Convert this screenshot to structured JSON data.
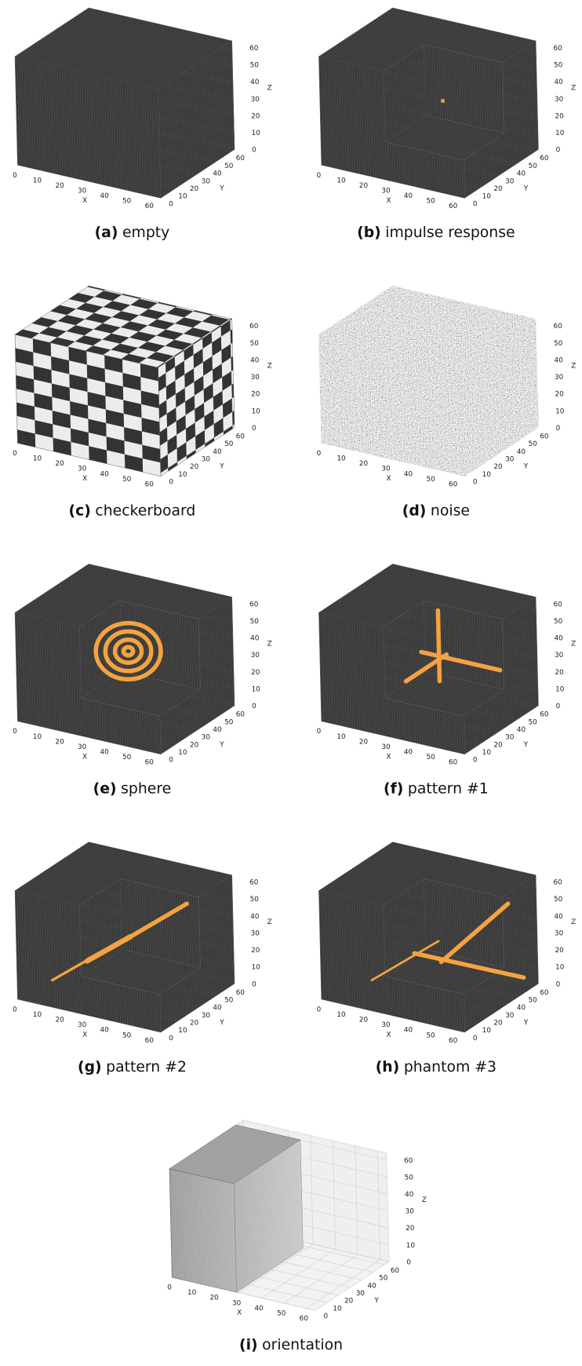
{
  "panels": [
    {
      "label": "(a)",
      "caption": "empty"
    },
    {
      "label": "(b)",
      "caption": "impulse response"
    },
    {
      "label": "(c)",
      "caption": "checkerboard"
    },
    {
      "label": "(d)",
      "caption": "noise"
    },
    {
      "label": "(e)",
      "caption": "sphere"
    },
    {
      "label": "(f)",
      "caption": "pattern #1"
    },
    {
      "label": "(g)",
      "caption": "pattern #2"
    },
    {
      "label": "(h)",
      "caption": "phantom #3"
    },
    {
      "label": "(i)",
      "caption": "orientation"
    }
  ],
  "axes": {
    "x": {
      "label": "X",
      "ticks": [
        0,
        10,
        20,
        30,
        40,
        50,
        60
      ]
    },
    "y": {
      "label": "Y",
      "ticks": [
        0,
        10,
        20,
        30,
        40,
        50,
        60
      ]
    },
    "z": {
      "label": "Z",
      "ticks": [
        0,
        10,
        20,
        30,
        40,
        50,
        60
      ]
    }
  }
}
